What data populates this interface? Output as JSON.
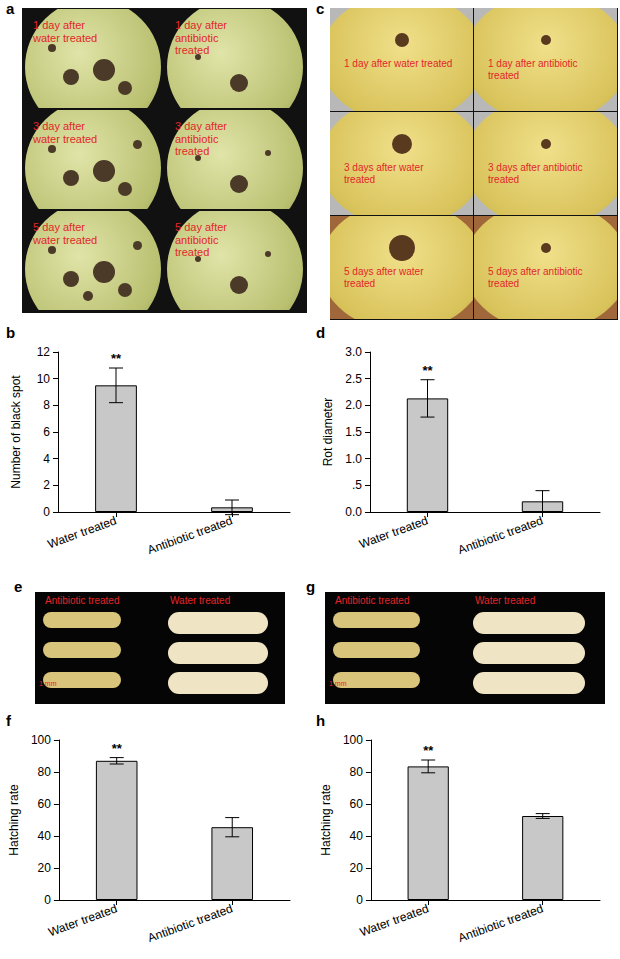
{
  "photos": [
    {
      "panel": "a",
      "labels": [
        "1 day after water treated",
        "1 day after antibiotic treated",
        "3 day after water treated",
        "3 day after antibiotic treated",
        "5 day after water treated",
        "5 day after antibiotic treated"
      ]
    },
    {
      "panel": "c",
      "labels": [
        "1 day after water treated",
        "1 day after antibiotic treated",
        "3 days after water treated",
        "3 days after antibiotic treated",
        "5 days after water treated",
        "5 days after antibiotic treated"
      ]
    },
    {
      "panel": "e",
      "labels": [
        "Antibiotic treated",
        "Water treated"
      ],
      "scale": "1 mm"
    },
    {
      "panel": "g",
      "labels": [
        "Antibiotic treated",
        "Water treated"
      ],
      "scale": "1 mm"
    }
  ],
  "chart_data": [
    {
      "panel": "b",
      "type": "bar",
      "ylabel": "Number of black spot",
      "categories": [
        "Water treated",
        "Antibiotic treated"
      ],
      "values": [
        9.5,
        0.35
      ],
      "errors": [
        1.3,
        0.55
      ],
      "significance": [
        "**",
        null
      ],
      "color": "#c8c8c8",
      "ylim": [
        0,
        12
      ],
      "yticks": [
        0,
        2,
        4,
        6,
        8,
        10,
        12
      ],
      "grid": false
    },
    {
      "panel": "d",
      "type": "bar",
      "ylabel": "Rot diameter",
      "categories": [
        "Water treated",
        "Antibiotic treated"
      ],
      "values": [
        2.13,
        0.2
      ],
      "errors": [
        0.35,
        0.2
      ],
      "significance": [
        "**",
        null
      ],
      "color": "#c8c8c8",
      "ylim": [
        0,
        3
      ],
      "yticks": [
        {
          "value": 0,
          "label": "0.0"
        },
        {
          "value": 0.5,
          "label": ".5"
        },
        {
          "value": 1,
          "label": "1.0"
        },
        {
          "value": 1.5,
          "label": "1.5"
        },
        {
          "value": 2,
          "label": "2.0"
        },
        {
          "value": 2.5,
          "label": "2.5"
        },
        {
          "value": 3,
          "label": "3.0"
        }
      ],
      "grid": false
    },
    {
      "panel": "f",
      "type": "bar",
      "ylabel": "Hatching rate",
      "categories": [
        "Water treated",
        "Antibiotic treated"
      ],
      "values": [
        87,
        45.5
      ],
      "errors": [
        2,
        6
      ],
      "significance": [
        "**",
        null
      ],
      "color": "#c8c8c8",
      "ylim": [
        0,
        100
      ],
      "yticks": [
        0,
        20,
        40,
        60,
        80,
        100
      ],
      "grid": false
    },
    {
      "panel": "h",
      "type": "bar",
      "ylabel": "Hatching rate",
      "categories": [
        "Water treated",
        "Antibiotic treated"
      ],
      "values": [
        83.5,
        52.5
      ],
      "errors": [
        4,
        1.5
      ],
      "significance": [
        "**",
        null
      ],
      "color": "#c8c8c8",
      "ylim": [
        0,
        100
      ],
      "yticks": [
        0,
        20,
        40,
        60,
        80,
        100
      ],
      "grid": false
    }
  ]
}
